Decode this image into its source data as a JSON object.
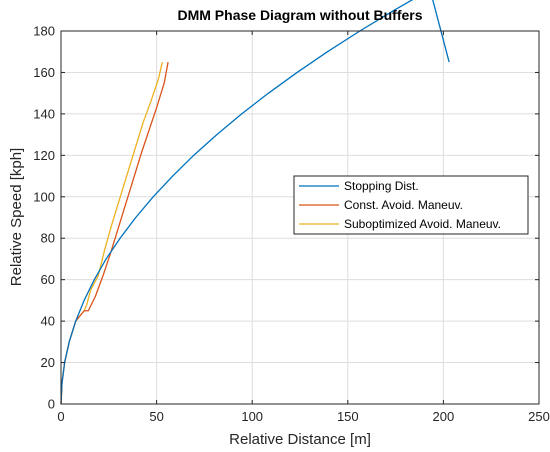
{
  "chart_data": {
    "type": "line",
    "title": "DMM Phase Diagram without Buffers",
    "xlabel": "Relative Distance [m]",
    "ylabel": "Relative Speed [kph]",
    "xlim": [
      0,
      250
    ],
    "ylim": [
      0,
      180
    ],
    "xticks": [
      "0",
      "50",
      "100",
      "150",
      "200",
      "250"
    ],
    "yticks": [
      "0",
      "20",
      "40",
      "60",
      "80",
      "100",
      "120",
      "140",
      "160",
      "180"
    ],
    "grid": true,
    "legend_position": "right",
    "series": [
      {
        "name": "Stopping Dist.",
        "color": "#0072BD",
        "x": [
          0,
          0.5,
          1.9,
          4.3,
          7.7,
          12.1,
          17.4,
          23.6,
          30.9,
          39.1,
          48.2,
          58.4,
          69.4,
          81.5,
          94.5,
          108.5,
          123.5,
          139.4,
          156.3,
          174.2,
          193.0,
          203.0
        ],
        "y": [
          0,
          10,
          20,
          30,
          40,
          50,
          60,
          70,
          80,
          90,
          100,
          110,
          120,
          130,
          140,
          150,
          160,
          170,
          180,
          190,
          200,
          165
        ]
      },
      {
        "name": "Const. Avoid. Maneuv.",
        "color": "#D95319",
        "x": [
          0,
          0.5,
          1.9,
          4.3,
          7.7,
          12.1,
          14.3,
          18.0,
          22.0,
          26.0,
          30.0,
          34.0,
          38.0,
          42.0,
          46.0,
          50.0,
          54.0,
          56.0
        ],
        "y": [
          0,
          10,
          20,
          30,
          40,
          45,
          45,
          52,
          62,
          73,
          85,
          97,
          109,
          121,
          132,
          143,
          155,
          165
        ]
      },
      {
        "name": "Suboptimized Avoid. Maneuv.",
        "color": "#EDB120",
        "x": [
          0,
          0.5,
          1.9,
          4.3,
          7.7,
          12.1,
          13.5,
          15.5,
          19.5,
          23.0,
          27.0,
          31.0,
          35.0,
          39.0,
          43.0,
          47.0,
          51.0,
          53.0
        ],
        "y": [
          0,
          10,
          20,
          30,
          40,
          45,
          48,
          55,
          62,
          75,
          88,
          100,
          112,
          124,
          136,
          146,
          157,
          165
        ]
      }
    ]
  }
}
